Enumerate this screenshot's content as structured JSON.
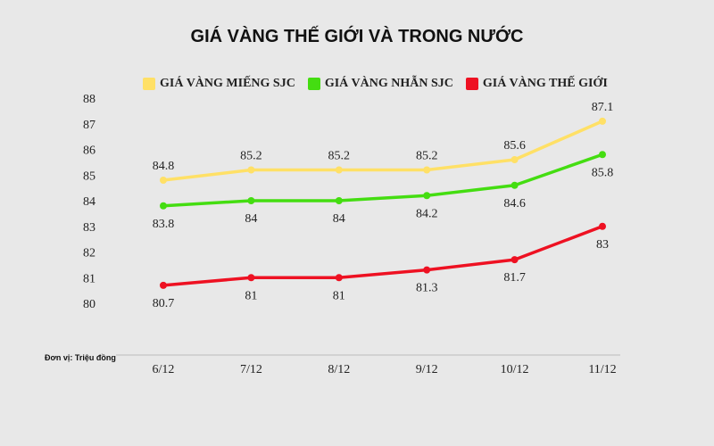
{
  "chart_data": {
    "type": "line",
    "title": "GIÁ VÀNG THẾ GIỚI VÀ TRONG NƯỚC",
    "unit_note": "Đơn vị: Triệu đồng",
    "categories": [
      "6/12",
      "7/12",
      "8/12",
      "9/12",
      "10/12",
      "11/12"
    ],
    "ylim": [
      80,
      88
    ],
    "yticks": [
      "80",
      "81",
      "82",
      "83",
      "84",
      "85",
      "86",
      "87",
      "88"
    ],
    "grid": false,
    "legend_position": "top",
    "series": [
      {
        "name": "GIÁ VÀNG MIẾNG SJC",
        "color": "#ffe066",
        "values": [
          84.8,
          85.2,
          85.2,
          85.2,
          85.6,
          87.1
        ],
        "labels": [
          "84.8",
          "85.2",
          "85.2",
          "85.2",
          "85.6",
          "87.1"
        ],
        "label_pos": "above"
      },
      {
        "name": "GIÁ VÀNG NHẪN SJC",
        "color": "#44dd11",
        "values": [
          83.8,
          84,
          84,
          84.2,
          84.6,
          85.8
        ],
        "labels": [
          "83.8",
          "84",
          "84",
          "84.2",
          "84.6",
          "85.8"
        ],
        "label_pos": "below"
      },
      {
        "name": "GIÁ VÀNG THẾ GIỚI",
        "color": "#ee1122",
        "values": [
          80.7,
          81,
          81,
          81.3,
          81.7,
          83
        ],
        "labels": [
          "80.7",
          "81",
          "81",
          "81.3",
          "81.7",
          "83"
        ],
        "label_pos": "below"
      }
    ]
  }
}
